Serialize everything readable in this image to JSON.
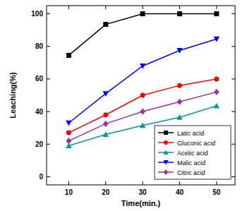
{
  "chart_data": {
    "type": "line",
    "x_label": "Time(min.)",
    "y_label": "Leaching(%)",
    "x": [
      10,
      20,
      30,
      40,
      50
    ],
    "xlim": [
      4,
      55
    ],
    "xticks": [
      10,
      20,
      30,
      40,
      50
    ],
    "ylim": [
      -5,
      105
    ],
    "yticks": [
      0,
      20,
      40,
      60,
      80,
      100
    ],
    "legend": "lower-right",
    "series": [
      {
        "name": "Latic acid",
        "color": "#000000",
        "marker": "square",
        "values": [
          74.5,
          93.5,
          100,
          100,
          100
        ]
      },
      {
        "name": "Gluconic acid",
        "color": "#ff0000",
        "marker": "circle",
        "values": [
          27,
          38,
          50,
          56,
          60
        ]
      },
      {
        "name": "Acetic acid",
        "color": "#009999",
        "marker": "triangle",
        "values": [
          19,
          26,
          31.5,
          36.5,
          43.5
        ]
      },
      {
        "name": "Malic acid",
        "color": "#0000ff",
        "marker": "triangle-down",
        "values": [
          33,
          51,
          68,
          77.5,
          84.5
        ]
      },
      {
        "name": "Citric acid",
        "color": "#993399",
        "marker": "diamond",
        "values": [
          22,
          32.5,
          40,
          46,
          52
        ]
      }
    ]
  }
}
